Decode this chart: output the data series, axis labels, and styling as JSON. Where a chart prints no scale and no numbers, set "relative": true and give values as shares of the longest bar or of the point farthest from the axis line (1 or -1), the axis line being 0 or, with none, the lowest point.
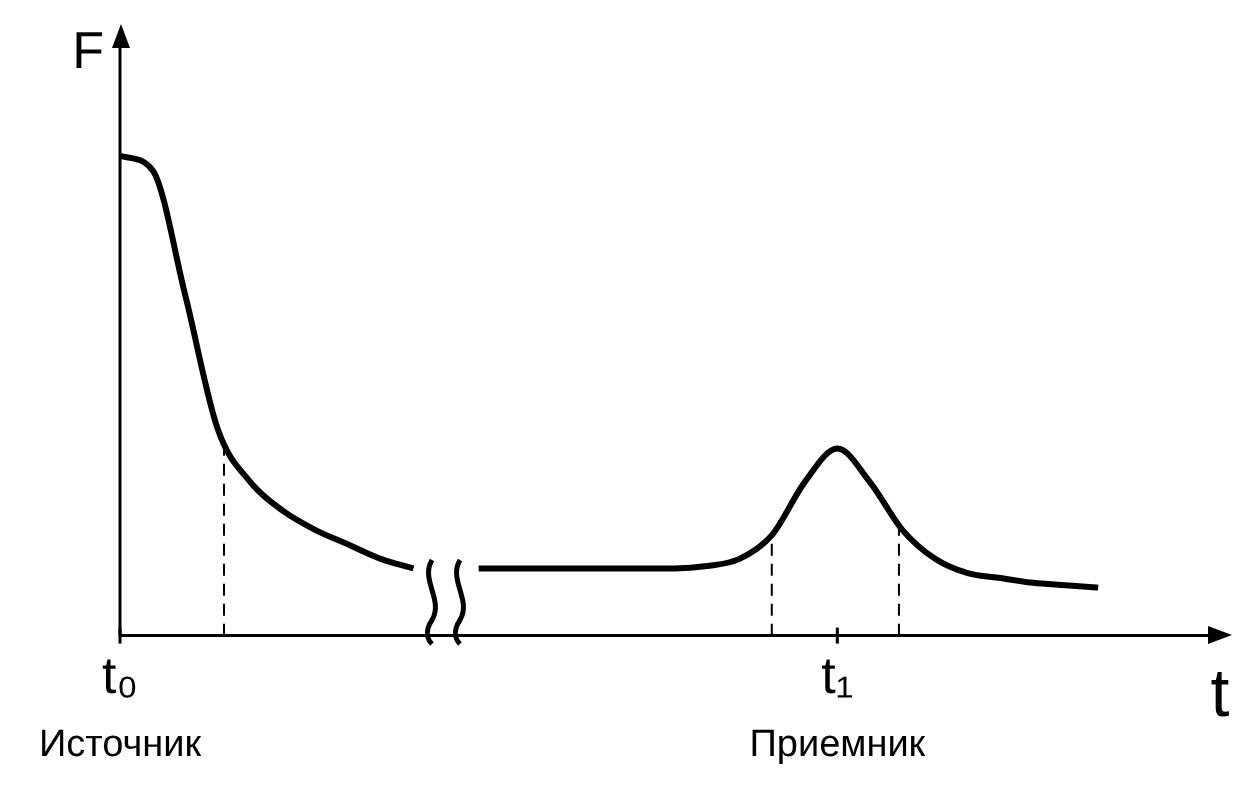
{
  "chart_data": {
    "type": "line",
    "xlabel": "t",
    "ylabel": "F",
    "relative": true,
    "color": "#000000",
    "marker": "none",
    "line_style": "solid",
    "grid": false,
    "legend": false,
    "categories": [
      "t₀",
      null,
      null,
      null,
      null,
      null,
      null,
      null,
      null,
      null,
      null,
      null,
      null,
      null,
      null,
      null,
      null,
      null,
      null,
      null,
      null,
      null,
      "t₁",
      null,
      null,
      null,
      null,
      null,
      null,
      null,
      null,
      null,
      null,
      null
    ],
    "values": [
      1,
      0.97,
      0.71,
      0.43,
      0.32,
      0.26,
      0.22,
      0.19,
      0.16,
      0.14,
      null,
      0.14,
      0.14,
      0.14,
      0.14,
      0.14,
      0.14,
      0.14,
      0.145,
      0.16,
      0.21,
      0.32,
      0.39,
      0.32,
      0.22,
      0.16,
      0.13,
      0.12,
      0.11,
      0.105,
      0.1,
      null,
      null,
      null
    ],
    "annotations": [
      "Источник",
      "Приемник"
    ]
  }
}
